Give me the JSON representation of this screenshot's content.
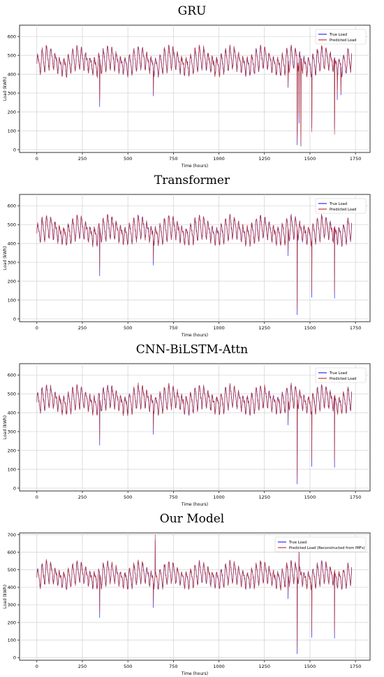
{
  "chart_data": [
    {
      "type": "line",
      "title": "GRU",
      "xlabel": "Time (hours)",
      "ylabel": "Load (kWh)",
      "xlim": [
        -95,
        1830
      ],
      "ylim": [
        -15,
        660
      ],
      "x_ticks": [
        0,
        250,
        500,
        750,
        1000,
        1250,
        1500,
        1750
      ],
      "y_ticks": [
        0,
        100,
        200,
        300,
        400,
        500,
        600
      ],
      "grid": true,
      "legend_position": "top-right",
      "series": [
        {
          "name": "True Load",
          "color": "#2a2aff"
        },
        {
          "name": "Predicted Load",
          "color": "#c0392b"
        }
      ],
      "base_level": 460,
      "daily_amplitude": 40,
      "spikes": [
        {
          "x": 345,
          "y": 228
        },
        {
          "x": 640,
          "y": 285
        },
        {
          "x": 1380,
          "y": 330
        },
        {
          "x": 1430,
          "y": 25
        },
        {
          "x": 1440,
          "y": 140
        },
        {
          "x": 1450,
          "y": 20
        },
        {
          "x": 1510,
          "y": 115
        },
        {
          "x": 1635,
          "y": 110
        },
        {
          "x": 1650,
          "y": 265
        },
        {
          "x": 1670,
          "y": 290
        }
      ]
    },
    {
      "type": "line",
      "title": "Transformer",
      "xlabel": "Time (hours)",
      "ylabel": "Load (kWh)",
      "xlim": [
        -95,
        1830
      ],
      "ylim": [
        -15,
        660
      ],
      "x_ticks": [
        0,
        250,
        500,
        750,
        1000,
        1250,
        1500,
        1750
      ],
      "y_ticks": [
        0,
        100,
        200,
        300,
        400,
        500,
        600
      ],
      "grid": true,
      "legend_position": "top-right",
      "series": [
        {
          "name": "True Load",
          "color": "#2a2aff"
        },
        {
          "name": "Predicted Load",
          "color": "#c0392b"
        }
      ],
      "base_level": 460,
      "daily_amplitude": 40,
      "spikes": [
        {
          "x": 345,
          "y": 228
        },
        {
          "x": 640,
          "y": 285
        },
        {
          "x": 1380,
          "y": 335
        },
        {
          "x": 1430,
          "y": 22
        },
        {
          "x": 1510,
          "y": 115
        },
        {
          "x": 1635,
          "y": 110
        }
      ]
    },
    {
      "type": "line",
      "title": "CNN-BiLSTM-Attn",
      "xlabel": "Time (hours)",
      "ylabel": "Load (kWh)",
      "xlim": [
        -95,
        1830
      ],
      "ylim": [
        -15,
        660
      ],
      "x_ticks": [
        0,
        250,
        500,
        750,
        1000,
        1250,
        1500,
        1750
      ],
      "y_ticks": [
        0,
        100,
        200,
        300,
        400,
        500,
        600
      ],
      "grid": true,
      "legend_position": "top-right",
      "series": [
        {
          "name": "True Load",
          "color": "#2a2aff"
        },
        {
          "name": "Predicted Load",
          "color": "#c0392b"
        }
      ],
      "base_level": 460,
      "daily_amplitude": 40,
      "spikes": [
        {
          "x": 345,
          "y": 228
        },
        {
          "x": 640,
          "y": 285
        },
        {
          "x": 1380,
          "y": 335
        },
        {
          "x": 1430,
          "y": 22
        },
        {
          "x": 1510,
          "y": 115
        },
        {
          "x": 1635,
          "y": 110
        }
      ]
    },
    {
      "type": "line",
      "title": "Our Model",
      "xlabel": "Time (hours)",
      "ylabel": "Load (kWh)",
      "xlim": [
        -95,
        1830
      ],
      "ylim": [
        -15,
        710
      ],
      "x_ticks": [
        0,
        250,
        500,
        750,
        1000,
        1250,
        1500,
        1750
      ],
      "y_ticks": [
        0,
        100,
        200,
        300,
        400,
        500,
        600,
        700
      ],
      "grid": true,
      "legend_position": "top-right",
      "series": [
        {
          "name": "True Load",
          "color": "#2a2aff"
        },
        {
          "name": "Predicted Load (Reconstructed from IMFs)",
          "color": "#c0392b"
        }
      ],
      "base_level": 460,
      "daily_amplitude": 40,
      "spikes": [
        {
          "x": 345,
          "y": 228
        },
        {
          "x": 640,
          "y": 285
        },
        {
          "x": 650,
          "y": 670
        },
        {
          "x": 1380,
          "y": 335
        },
        {
          "x": 1430,
          "y": 22
        },
        {
          "x": 1440,
          "y": 605
        },
        {
          "x": 1510,
          "y": 115
        },
        {
          "x": 1635,
          "y": 110
        }
      ]
    }
  ]
}
